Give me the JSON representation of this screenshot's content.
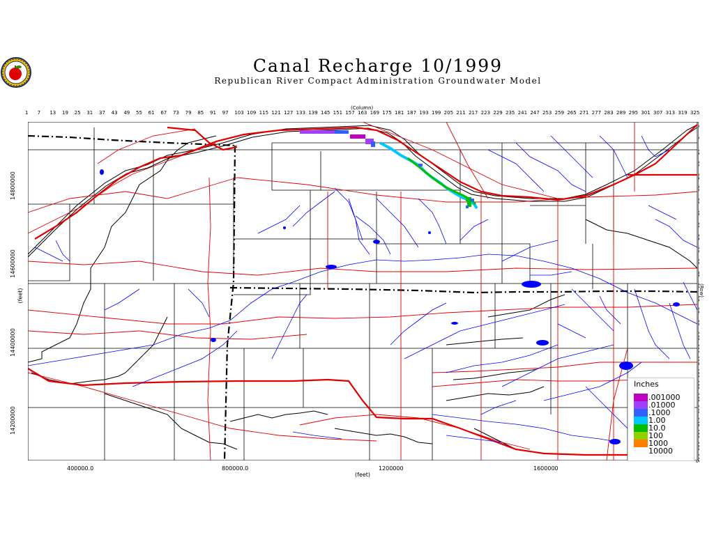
{
  "title": "Canal Recharge  10/1999",
  "subtitle": "Republican River Compact Administration Groundwater Model",
  "column_axis_title": "(Column)",
  "row_axis_title": "(Row)",
  "y_unit": "(feet)",
  "x_unit": "(feet)",
  "column_ticks": [
    "1",
    "7",
    "13",
    "19",
    "25",
    "31",
    "37",
    "43",
    "49",
    "55",
    "61",
    "67",
    "73",
    "79",
    "85",
    "91",
    "97",
    "103",
    "109",
    "115",
    "121",
    "127",
    "133",
    "139",
    "145",
    "151",
    "157",
    "163",
    "169",
    "175",
    "181",
    "187",
    "193",
    "199",
    "205",
    "211",
    "217",
    "223",
    "229",
    "235",
    "241",
    "247",
    "253",
    "259",
    "265",
    "271",
    "277",
    "283",
    "289",
    "295",
    "301",
    "307",
    "313",
    "319",
    "325"
  ],
  "row_ticks": [
    "3",
    "9",
    "15",
    "21",
    "27",
    "33",
    "39",
    "45",
    "51",
    "57",
    "63",
    "69",
    "75",
    "81",
    "87",
    "93",
    "99",
    "105",
    "111",
    "117",
    "123",
    "129",
    "135",
    "141",
    "147",
    "153",
    "159",
    "165"
  ],
  "y_labels": [
    "14800000",
    "14600000",
    "14400000",
    "14200000"
  ],
  "x_labels": [
    "400000.0",
    "800000.0",
    "1200000",
    "1600000"
  ],
  "legend": {
    "title": "Inches",
    "items": [
      {
        "label": ".001000",
        "color": "#c000c0"
      },
      {
        "label": ".01000",
        "color": "#a040ff"
      },
      {
        "label": ".1000",
        "color": "#3060ff"
      },
      {
        "label": "1.00",
        "color": "#00c8ff"
      },
      {
        "label": "10.0",
        "color": "#00c000"
      },
      {
        "label": "100",
        "color": "#90d000"
      },
      {
        "label": "1000",
        "color": "#ff8000"
      },
      {
        "label": "10000",
        "color": "#ffffff"
      }
    ]
  },
  "colors": {
    "rivers": "#0000ff",
    "roads": "#e00000",
    "boundary": "#000000",
    "highway": "#e00000"
  }
}
